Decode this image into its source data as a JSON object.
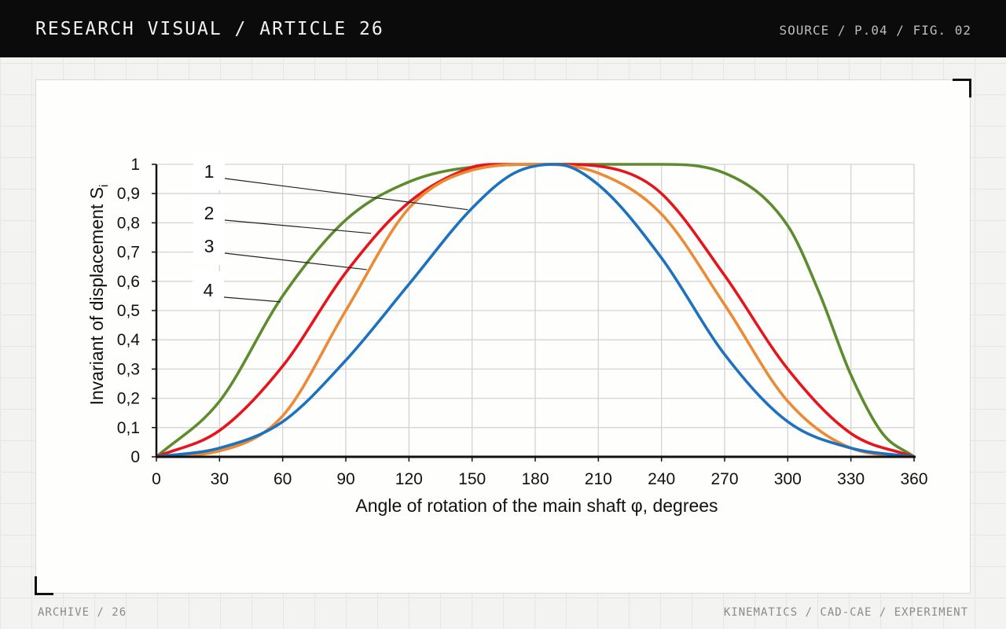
{
  "header": {
    "title": "RESEARCH VISUAL / ARTICLE 26",
    "source": "SOURCE / P.04 / FIG. 02"
  },
  "footer": {
    "left": "ARCHIVE / 26",
    "right": "KINEMATICS / CAD-CAE / EXPERIMENT"
  },
  "chart_data": {
    "type": "line",
    "title": "",
    "xlabel": "Angle of rotation of the main shaft φ, degrees",
    "ylabel": "Invariant of displacement S",
    "ylabel_sub": "i",
    "xlim": [
      0,
      360
    ],
    "ylim": [
      0,
      1
    ],
    "x_ticks": [
      "0",
      "30",
      "60",
      "90",
      "120",
      "150",
      "180",
      "210",
      "240",
      "270",
      "300",
      "330",
      "360"
    ],
    "y_ticks": [
      "0",
      "0,1",
      "0,2",
      "0,3",
      "0,4",
      "0,5",
      "0,6",
      "0,7",
      "0,8",
      "0,9",
      "1"
    ],
    "grid": true,
    "legend": "curve numbers 1–4 with leader lines, upper left",
    "series": [
      {
        "name": "1",
        "color": "#1d72c0",
        "x": [
          0,
          30,
          60,
          90,
          120,
          150,
          170,
          190,
          210,
          240,
          270,
          300,
          330,
          360
        ],
        "values": [
          0,
          0.03,
          0.12,
          0.33,
          0.59,
          0.85,
          0.97,
          1.0,
          0.93,
          0.68,
          0.35,
          0.12,
          0.03,
          0
        ]
      },
      {
        "name": "2",
        "color": "#e8141b",
        "x": [
          0,
          30,
          60,
          90,
          120,
          150,
          160,
          190,
          220,
          240,
          270,
          300,
          330,
          360
        ],
        "values": [
          0,
          0.09,
          0.31,
          0.63,
          0.87,
          0.99,
          1.0,
          1.0,
          0.98,
          0.9,
          0.62,
          0.3,
          0.08,
          0
        ]
      },
      {
        "name": "3",
        "color": "#ed8a35",
        "x": [
          0,
          30,
          60,
          90,
          120,
          150,
          180,
          210,
          240,
          270,
          300,
          330,
          360
        ],
        "values": [
          0,
          0.02,
          0.14,
          0.5,
          0.85,
          0.98,
          1.0,
          0.97,
          0.83,
          0.52,
          0.19,
          0.03,
          0
        ]
      },
      {
        "name": "4",
        "color": "#5c8c2e",
        "x": [
          0,
          30,
          60,
          90,
          120,
          150,
          190,
          240,
          270,
          300,
          315,
          330,
          345,
          360
        ],
        "values": [
          0,
          0.19,
          0.55,
          0.81,
          0.94,
          0.99,
          1.0,
          1.0,
          0.97,
          0.79,
          0.56,
          0.28,
          0.08,
          0
        ]
      }
    ],
    "annotations": [
      {
        "label": "1",
        "target_x": 148,
        "target_y": 0.845
      },
      {
        "label": "2",
        "target_x": 102,
        "target_y": 0.764
      },
      {
        "label": "3",
        "target_x": 100,
        "target_y": 0.64
      },
      {
        "label": "4",
        "target_x": 59,
        "target_y": 0.53
      }
    ]
  }
}
